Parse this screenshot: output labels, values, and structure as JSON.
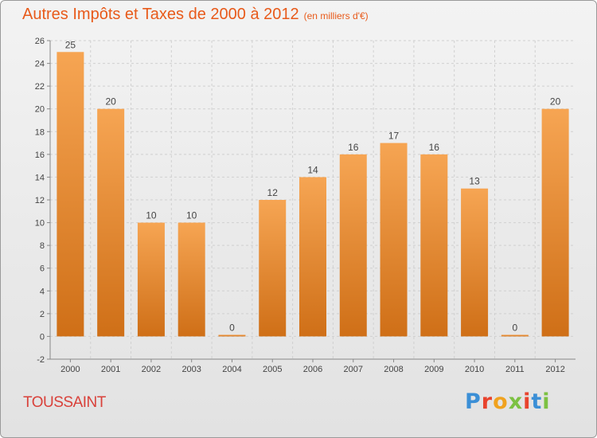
{
  "chart_data": {
    "type": "bar",
    "title": "Autres Impôts et Taxes de 2000 à 2012",
    "subtitle": "(en milliers d'€)",
    "categories": [
      "2000",
      "2001",
      "2002",
      "2003",
      "2004",
      "2005",
      "2006",
      "2007",
      "2008",
      "2009",
      "2010",
      "2011",
      "2012"
    ],
    "values": [
      25,
      20,
      10,
      10,
      0,
      12,
      14,
      16,
      17,
      16,
      13,
      0,
      20
    ],
    "ylim": [
      -2,
      26
    ],
    "yticks": [
      -2,
      0,
      2,
      4,
      6,
      8,
      10,
      12,
      14,
      16,
      18,
      20,
      22,
      24,
      26
    ],
    "grid": true,
    "bar_color": "#f28c2e"
  },
  "commune": "TOUSSAINT",
  "logo": {
    "text": "Proxiti",
    "colors": [
      "#3b8fd6",
      "#e8432d",
      "#f0a21e",
      "#7cc142",
      "#e8432d",
      "#3b8fd6",
      "#7cc142"
    ]
  }
}
